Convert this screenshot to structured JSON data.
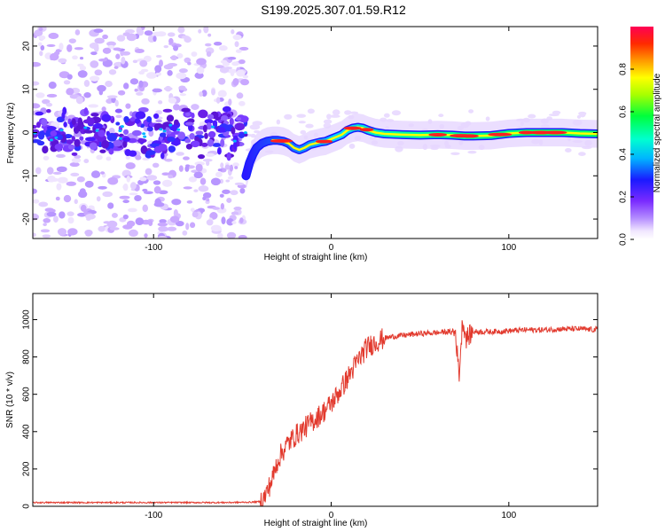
{
  "title": "S199.2025.307.01.59.R12",
  "colors": {
    "snr_line": "#e23a2e",
    "frame": "#000000",
    "background": "#ffffff"
  },
  "chart_data": [
    {
      "type": "heatmap",
      "name": "spectrogram",
      "xlabel": "Height of straight line (km)",
      "ylabel": "Frequency (Hz)",
      "xlim": [
        -168,
        150
      ],
      "ylim": [
        -24.5,
        24.5
      ],
      "xticks": [
        -100,
        0,
        100
      ],
      "yticks": [
        -20,
        -10,
        0,
        10,
        20
      ],
      "colorbar": {
        "label": "Normalized spectral amplitude",
        "range": [
          0,
          1
        ],
        "ticks": [
          "0.0",
          "0.2",
          "0.4",
          "0.6",
          "0.8"
        ]
      },
      "trace_frequency": {
        "x": [
          -48,
          -46,
          -44,
          -42,
          -39,
          -36,
          -33,
          -30,
          -27,
          -24,
          -21,
          -18,
          -15,
          -12,
          -9,
          -6,
          -3,
          0,
          3,
          6,
          9,
          12,
          15,
          18,
          21,
          25,
          30,
          40,
          50,
          60,
          68,
          75,
          80,
          90,
          100,
          110,
          120,
          130,
          140,
          150
        ],
        "y": [
          -10,
          -7,
          -5,
          -3.5,
          -2.5,
          -2,
          -1.8,
          -1.8,
          -2,
          -2.5,
          -3.5,
          -4,
          -3.5,
          -2.8,
          -2.5,
          -2.2,
          -2,
          -1.5,
          -1,
          -0.5,
          0.5,
          1,
          1.2,
          1,
          0.5,
          0,
          -0.3,
          -0.5,
          -0.6,
          -0.5,
          -0.6,
          -0.8,
          -0.8,
          -0.7,
          -0.2,
          0,
          0,
          0,
          -0.2,
          -0.3
        ]
      }
    },
    {
      "type": "line",
      "name": "snr",
      "xlabel": "Height of straight line (km)",
      "ylabel": "SNR (10 * v/v)",
      "xlim": [
        -168,
        150
      ],
      "ylim": [
        0,
        1140
      ],
      "xticks": [
        -100,
        0,
        100
      ],
      "yticks": [
        0,
        200,
        400,
        600,
        800,
        1000
      ],
      "series": [
        {
          "name": "SNR",
          "x": [
            -168,
            -120,
            -90,
            -60,
            -45,
            -40,
            -38,
            -36,
            -33,
            -30,
            -25,
            -20,
            -15,
            -10,
            -5,
            0,
            5,
            10,
            15,
            20,
            25,
            30,
            35,
            40,
            50,
            60,
            65,
            70,
            72,
            74,
            76,
            80,
            90,
            100,
            110,
            120,
            130,
            140,
            150
          ],
          "y": [
            20,
            20,
            20,
            20,
            22,
            25,
            40,
            80,
            150,
            250,
            330,
            380,
            420,
            460,
            500,
            550,
            620,
            700,
            780,
            850,
            880,
            900,
            910,
            915,
            925,
            930,
            935,
            930,
            700,
            1000,
            900,
            935,
            935,
            940,
            945,
            945,
            950,
            950,
            945
          ]
        }
      ]
    }
  ]
}
